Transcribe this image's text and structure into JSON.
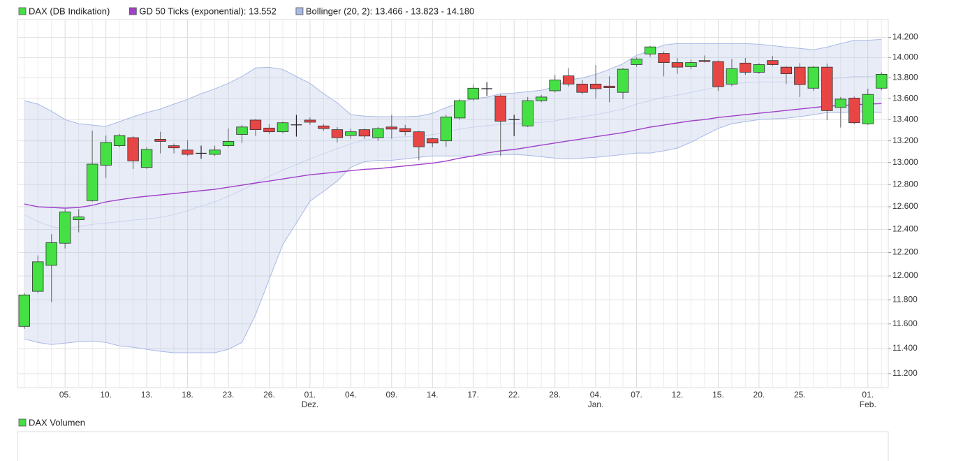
{
  "chart_data": {
    "type": "candlestick",
    "log_scale": true,
    "grid": true,
    "categories": [
      null,
      null,
      null,
      "05.",
      null,
      null,
      "10.",
      null,
      null,
      "13.",
      null,
      null,
      "18.",
      null,
      null,
      "23.",
      null,
      null,
      "26.",
      null,
      null,
      "01.",
      null,
      null,
      "04.",
      null,
      null,
      "09.",
      null,
      null,
      "14.",
      null,
      null,
      "17.",
      null,
      null,
      "22.",
      null,
      null,
      "28.",
      null,
      null,
      "04.",
      null,
      null,
      "07.",
      null,
      null,
      "12.",
      null,
      null,
      "15.",
      null,
      null,
      "20.",
      null,
      null,
      "25.",
      null,
      null,
      null,
      null,
      "01.",
      null
    ],
    "month_labels": [
      null,
      null,
      null,
      null,
      null,
      null,
      null,
      null,
      null,
      null,
      null,
      null,
      null,
      null,
      null,
      null,
      null,
      null,
      null,
      null,
      null,
      "Dez.",
      null,
      null,
      null,
      null,
      null,
      null,
      null,
      null,
      null,
      null,
      null,
      null,
      null,
      null,
      null,
      null,
      null,
      null,
      null,
      null,
      "Jan.",
      null,
      null,
      null,
      null,
      null,
      null,
      null,
      null,
      null,
      null,
      null,
      null,
      null,
      null,
      null,
      null,
      null,
      null,
      null,
      "Feb.",
      null
    ],
    "ylim": [
      11090,
      14380
    ],
    "yticks": [
      {
        "value": 11200,
        "label": "11.200"
      },
      {
        "value": 11400,
        "label": "11.400"
      },
      {
        "value": 11600,
        "label": "11.600"
      },
      {
        "value": 11800,
        "label": "11.800"
      },
      {
        "value": 12000,
        "label": "12.000"
      },
      {
        "value": 12200,
        "label": "12.200"
      },
      {
        "value": 12400,
        "label": "12.400"
      },
      {
        "value": 12600,
        "label": "12.600"
      },
      {
        "value": 12800,
        "label": "12.800"
      },
      {
        "value": 13000,
        "label": "13.000"
      },
      {
        "value": 13200,
        "label": "13.200"
      },
      {
        "value": 13400,
        "label": "13.400"
      },
      {
        "value": 13600,
        "label": "13.600"
      },
      {
        "value": 13800,
        "label": "13.800"
      },
      {
        "value": 14000,
        "label": "14.000"
      },
      {
        "value": 14200,
        "label": "14.200"
      }
    ],
    "series": [
      {
        "name": "DAX (DB Indikation)",
        "type": "candlestick",
        "up_color": "#44e044",
        "down_color": "#e84545",
        "open": [
          11580,
          11870,
          12090,
          12280,
          12485,
          12655,
          12975,
          13155,
          13230,
          12955,
          13215,
          13155,
          13115,
          13085,
          13075,
          13155,
          13260,
          13395,
          13320,
          13285,
          13350,
          13395,
          13340,
          13305,
          13250,
          13305,
          13230,
          13330,
          13315,
          13285,
          13220,
          13200,
          13415,
          13595,
          13695,
          13625,
          13400,
          13340,
          13580,
          13675,
          13820,
          13740,
          13740,
          13720,
          13660,
          13930,
          14035,
          14040,
          13950,
          13910,
          13970,
          13960,
          13740,
          13945,
          13855,
          13970,
          13905,
          13905,
          13700,
          13905,
          13515,
          13605,
          13360,
          13700
        ],
        "high": [
          11855,
          12175,
          12360,
          12580,
          12580,
          13295,
          13250,
          13265,
          13245,
          13140,
          13285,
          13175,
          13205,
          13155,
          13155,
          13315,
          13350,
          13405,
          13360,
          13380,
          13445,
          13420,
          13360,
          13330,
          13315,
          13315,
          13330,
          13445,
          13350,
          13295,
          13230,
          13445,
          13595,
          13735,
          13760,
          13640,
          13445,
          13615,
          13635,
          13830,
          13895,
          13780,
          13925,
          13815,
          13895,
          14000,
          14115,
          14060,
          13995,
          13980,
          14020,
          13970,
          13985,
          13995,
          13945,
          14015,
          13915,
          13945,
          13915,
          13940,
          13615,
          13620,
          13695,
          13855
        ],
        "low": [
          11560,
          11855,
          11780,
          12235,
          12375,
          12645,
          12860,
          13140,
          12940,
          12940,
          13085,
          13085,
          13060,
          13035,
          13060,
          13140,
          13180,
          13245,
          13265,
          13270,
          13240,
          13350,
          13295,
          13185,
          13220,
          13220,
          13200,
          13220,
          13250,
          13020,
          13140,
          13145,
          13400,
          13580,
          13625,
          13060,
          13245,
          13330,
          13565,
          13660,
          13715,
          13640,
          13600,
          13565,
          13595,
          13910,
          14005,
          13815,
          13840,
          13885,
          13950,
          13675,
          13720,
          13830,
          13840,
          13915,
          13740,
          13615,
          13675,
          13395,
          13325,
          13355,
          13350,
          13680
        ],
        "close": [
          11840,
          12120,
          12285,
          12555,
          12510,
          12985,
          13185,
          13250,
          13015,
          13120,
          13195,
          13135,
          13075,
          13085,
          13115,
          13195,
          13330,
          13305,
          13285,
          13370,
          13350,
          13375,
          13315,
          13230,
          13285,
          13245,
          13315,
          13310,
          13285,
          13145,
          13180,
          13425,
          13580,
          13700,
          13695,
          13385,
          13400,
          13580,
          13615,
          13780,
          13740,
          13660,
          13695,
          13705,
          13885,
          13985,
          14105,
          13950,
          13905,
          13950,
          13960,
          13715,
          13890,
          13855,
          13930,
          13930,
          13840,
          13735,
          13905,
          13485,
          13595,
          13370,
          13640,
          13835
        ]
      },
      {
        "name": "GD 50 Ticks (exponential): 13.552",
        "type": "line",
        "color": "#a040c8",
        "values": [
          12625,
          12600,
          12594,
          12588,
          12594,
          12613,
          12644,
          12663,
          12681,
          12694,
          12706,
          12719,
          12731,
          12744,
          12756,
          12775,
          12794,
          12813,
          12831,
          12850,
          12869,
          12888,
          12900,
          12913,
          12925,
          12938,
          12944,
          12956,
          12969,
          12981,
          12994,
          13013,
          13040,
          13060,
          13087,
          13107,
          13120,
          13140,
          13160,
          13180,
          13200,
          13219,
          13239,
          13258,
          13277,
          13303,
          13329,
          13348,
          13368,
          13387,
          13400,
          13420,
          13433,
          13447,
          13460,
          13473,
          13487,
          13500,
          13513,
          13527,
          13533,
          13540,
          13547,
          13552
        ]
      },
      {
        "name": "Bollinger (20, 2): 13.466 - 13.823 - 14.180",
        "type": "band",
        "color": "#a9b9e4",
        "upper": [
          13580,
          13547,
          13480,
          13400,
          13361,
          13348,
          13335,
          13381,
          13427,
          13467,
          13500,
          13547,
          13593,
          13647,
          13693,
          13747,
          13814,
          13897,
          13903,
          13883,
          13814,
          13747,
          13647,
          13560,
          13447,
          13433,
          13427,
          13427,
          13427,
          13433,
          13460,
          13513,
          13560,
          13600,
          13613,
          13647,
          13653,
          13667,
          13680,
          13713,
          13780,
          13800,
          13834,
          13883,
          13938,
          14021,
          14069,
          14124,
          14138,
          14138,
          14138,
          14138,
          14138,
          14138,
          14131,
          14117,
          14103,
          14090,
          14076,
          14103,
          14138,
          14172,
          14172,
          14180
        ],
        "middle": [
          12531,
          12469,
          12425,
          12406,
          12425,
          12444,
          12456,
          12469,
          12481,
          12494,
          12506,
          12531,
          12563,
          12606,
          12644,
          12694,
          12750,
          12813,
          12875,
          12931,
          12981,
          13033,
          13080,
          13127,
          13173,
          13206,
          13226,
          13232,
          13239,
          13245,
          13258,
          13284,
          13310,
          13329,
          13342,
          13355,
          13361,
          13368,
          13374,
          13387,
          13413,
          13427,
          13447,
          13473,
          13500,
          13547,
          13580,
          13613,
          13633,
          13660,
          13687,
          13713,
          13740,
          13753,
          13760,
          13760,
          13760,
          13760,
          13767,
          13787,
          13800,
          13814,
          13814,
          13823
        ],
        "lower": [
          11478,
          11450,
          11433,
          11444,
          11456,
          11461,
          11450,
          11422,
          11411,
          11394,
          11378,
          11367,
          11367,
          11367,
          11367,
          11394,
          11450,
          11677,
          11971,
          12269,
          12456,
          12650,
          12738,
          12831,
          12956,
          13007,
          13020,
          13020,
          13033,
          13047,
          13060,
          13060,
          13060,
          13060,
          13067,
          13073,
          13073,
          13067,
          13053,
          13040,
          13033,
          13040,
          13047,
          13060,
          13073,
          13087,
          13087,
          13107,
          13133,
          13187,
          13252,
          13316,
          13361,
          13381,
          13400,
          13407,
          13413,
          13427,
          13447,
          13467,
          13467,
          13473,
          13473,
          13466
        ]
      }
    ],
    "volume_panel": {
      "name": "DAX Volumen",
      "color": "#44e044"
    }
  }
}
